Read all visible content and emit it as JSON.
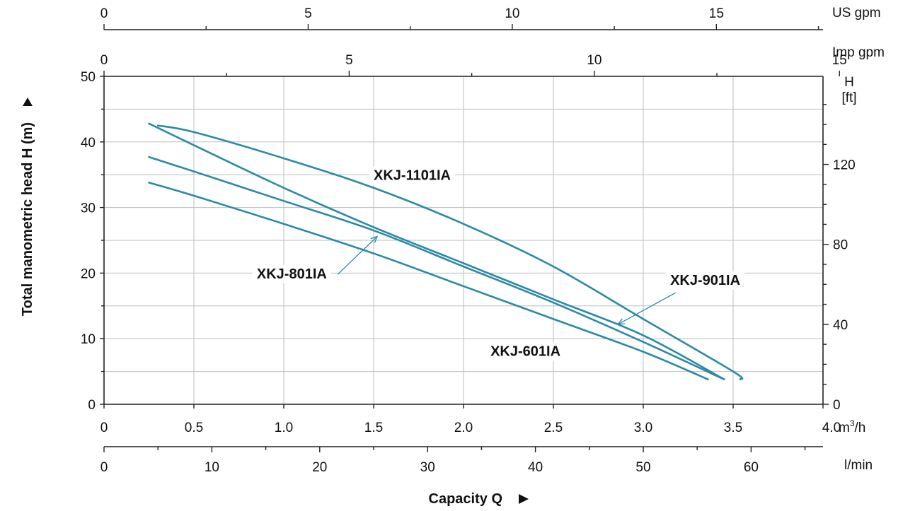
{
  "chart_data": {
    "type": "line",
    "xlabel": "Capacity Q",
    "ylabel": "Total manometric head H (m)",
    "x_unit": "m³/h",
    "x_unit_base": "m",
    "x_unit_sup": "3",
    "x_unit_tail": "/h",
    "xlim": [
      0,
      4.0
    ],
    "ylim": [
      0,
      50
    ],
    "x_ticks": [
      "0",
      "0.5",
      "1.0",
      "1.5",
      "2.0",
      "2.5",
      "3.0",
      "3.5",
      "4.0"
    ],
    "y_ticks": [
      "0",
      "10",
      "20",
      "30",
      "40",
      "50"
    ],
    "secondary_axes": {
      "l_min": {
        "unit": "l/min",
        "ticks": [
          "0",
          "10",
          "20",
          "30",
          "40",
          "50",
          "60"
        ]
      },
      "imp_gpm": {
        "unit": "Imp gpm",
        "ticks": [
          "0",
          "5",
          "10",
          "15"
        ]
      },
      "us_gpm": {
        "unit": "US gpm",
        "ticks": [
          "0",
          "5",
          "10",
          "15"
        ]
      },
      "head_ft": {
        "unit_line1": "H",
        "unit_line2": "[ft]",
        "ticks": [
          "0",
          "40",
          "80",
          "120"
        ]
      }
    },
    "grid": true,
    "series": [
      {
        "name": "XKJ-1101IA",
        "x": [
          0.3,
          0.5,
          1.0,
          1.5,
          2.0,
          2.5,
          3.0,
          3.5,
          3.54
        ],
        "y": [
          42.5,
          41.5,
          37.5,
          33.0,
          27.5,
          21.0,
          13.0,
          5.0,
          3.8
        ]
      },
      {
        "name": "XKJ-901IA",
        "x": [
          0.25,
          0.5,
          1.0,
          1.5,
          2.0,
          2.5,
          3.0,
          3.45
        ],
        "y": [
          42.8,
          39.5,
          33.0,
          27.0,
          21.5,
          16.0,
          10.5,
          3.8
        ]
      },
      {
        "name": "XKJ-801IA",
        "x": [
          0.25,
          0.5,
          1.0,
          1.5,
          2.0,
          2.5,
          3.0,
          3.45
        ],
        "y": [
          37.7,
          35.5,
          31.0,
          26.5,
          21.0,
          15.5,
          9.5,
          3.8
        ]
      },
      {
        "name": "XKJ-601IA",
        "x": [
          0.25,
          0.5,
          1.0,
          1.5,
          2.0,
          2.5,
          3.0,
          3.36
        ],
        "y": [
          33.8,
          31.8,
          27.5,
          23.0,
          18.0,
          13.0,
          8.0,
          3.8
        ]
      }
    ],
    "colors": {
      "curve": "#2b8aa8",
      "grid": "#bdbdbd",
      "axis": "#222222"
    }
  }
}
